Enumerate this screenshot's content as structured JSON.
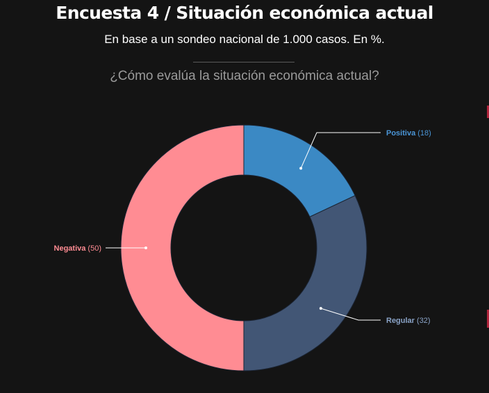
{
  "title": "Encuesta 4 / Situación económica actual",
  "subtitle": "En base a un sondeo nacional de 1.000 casos. En %.",
  "question": "¿Cómo evalúa la situación económica actual?",
  "chart_data": {
    "type": "pie",
    "donut": true,
    "title": "Encuesta 4 / Situación económica actual",
    "slices": [
      {
        "name": "Positiva",
        "value": 18,
        "color": "#3b89c4",
        "label_color": "#4a95d6"
      },
      {
        "name": "Regular",
        "value": 32,
        "color": "#425675",
        "label_color": "#8aa3c7"
      },
      {
        "name": "Negativa",
        "value": 50,
        "color": "#ff8c93",
        "label_color": "#ff8c93"
      }
    ]
  }
}
